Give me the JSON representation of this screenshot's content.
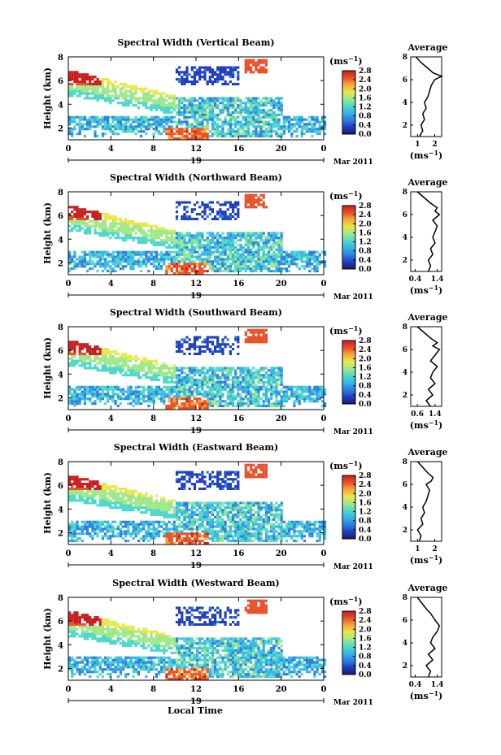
{
  "figure": {
    "xlabel": "Local Time",
    "date_label": "Mar 2011",
    "day_label": "19",
    "ylabel": "Height (km)",
    "unit_label": "(ms",
    "unit_sup": "−1",
    "avg_title": "Average",
    "avg_xunit": "(ms",
    "x_ticks": [
      "0",
      "4",
      "8",
      "12",
      "16",
      "20",
      "0"
    ],
    "y_ticks": [
      "2",
      "4",
      "6",
      "8"
    ],
    "colorbar_ticks": [
      "0.0",
      "0.4",
      "0.8",
      "1.2",
      "1.6",
      "2.0",
      "2.4",
      "2.8"
    ]
  },
  "colors": {
    "colormap": [
      "#1a1a6e",
      "#1f3fbf",
      "#2f7fe0",
      "#36b4e8",
      "#4fd8c8",
      "#9fe88a",
      "#e8e84a",
      "#f5a83c",
      "#e8502a",
      "#c81e1e"
    ]
  },
  "chart_data": [
    {
      "type": "heatmap",
      "title": "Spectral Width (Vertical Beam)",
      "x_range": [
        0,
        24
      ],
      "y_range": [
        1,
        8
      ],
      "c_range": [
        0.0,
        2.8
      ],
      "avg_title": "Average",
      "avg_xticks": [
        "1",
        "2"
      ],
      "avg_xlim": [
        0.6,
        2.4
      ],
      "avg_profile": {
        "height": [
          1.0,
          1.5,
          2.0,
          2.5,
          3.0,
          3.5,
          4.0,
          4.5,
          5.0,
          5.5,
          6.0,
          6.3,
          6.6,
          7.0,
          7.5,
          8.0
        ],
        "value": [
          1.1,
          1.3,
          1.2,
          1.4,
          1.3,
          1.5,
          1.4,
          1.6,
          1.7,
          1.8,
          2.0,
          2.4,
          1.9,
          1.6,
          1.2,
          0.9
        ]
      }
    },
    {
      "type": "heatmap",
      "title": "Spectral Width (Northward Beam)",
      "x_range": [
        0,
        24
      ],
      "y_range": [
        1,
        8
      ],
      "c_range": [
        0.0,
        2.8
      ],
      "avg_title": "Average",
      "avg_xticks": [
        "0.4",
        "1.4"
      ],
      "avg_xlim": [
        0.2,
        1.6
      ],
      "avg_profile": {
        "height": [
          1.0,
          1.5,
          2.0,
          2.5,
          3.0,
          3.5,
          4.0,
          4.5,
          5.0,
          5.5,
          6.0,
          6.3,
          6.6,
          7.0,
          7.5,
          8.0
        ],
        "value": [
          1.0,
          1.1,
          1.0,
          1.2,
          1.1,
          1.3,
          1.2,
          1.3,
          1.4,
          1.2,
          1.5,
          1.3,
          1.4,
          1.1,
          0.8,
          0.5
        ]
      }
    },
    {
      "type": "heatmap",
      "title": "Spectral Width (Southward Beam)",
      "x_range": [
        0,
        24
      ],
      "y_range": [
        1,
        8
      ],
      "c_range": [
        0.0,
        2.8
      ],
      "avg_title": "Average",
      "avg_xticks": [
        "0.6",
        "1.4"
      ],
      "avg_xlim": [
        0.3,
        1.7
      ],
      "avg_profile": {
        "height": [
          1.0,
          1.5,
          2.0,
          2.5,
          3.0,
          3.5,
          4.0,
          4.5,
          5.0,
          5.5,
          6.0,
          6.3,
          6.6,
          7.0,
          7.5,
          8.0
        ],
        "value": [
          1.2,
          1.0,
          1.3,
          1.1,
          1.4,
          1.2,
          1.3,
          1.5,
          1.2,
          1.4,
          1.6,
          1.3,
          1.5,
          1.2,
          0.9,
          0.6
        ]
      }
    },
    {
      "type": "heatmap",
      "title": "Spectral Width (Eastward Beam)",
      "x_range": [
        0,
        24
      ],
      "y_range": [
        1,
        8
      ],
      "c_range": [
        0.0,
        2.8
      ],
      "avg_title": "Average",
      "avg_xticks": [
        "1",
        "2"
      ],
      "avg_xlim": [
        0.6,
        2.4
      ],
      "avg_profile": {
        "height": [
          1.0,
          1.5,
          2.0,
          2.5,
          3.0,
          3.5,
          4.0,
          4.5,
          5.0,
          5.5,
          6.0,
          6.3,
          6.6,
          7.0,
          7.5,
          8.0
        ],
        "value": [
          1.1,
          1.2,
          1.0,
          1.3,
          1.2,
          1.4,
          1.3,
          1.5,
          1.6,
          1.7,
          1.5,
          1.8,
          1.9,
          1.6,
          1.3,
          1.0
        ]
      }
    },
    {
      "type": "heatmap",
      "title": "Spectral Width (Westward Beam)",
      "x_range": [
        0,
        24
      ],
      "y_range": [
        1,
        8
      ],
      "c_range": [
        0.0,
        2.8
      ],
      "avg_title": "Average",
      "avg_xticks": [
        "0.4",
        "1.4"
      ],
      "avg_xlim": [
        0.2,
        1.6
      ],
      "avg_profile": {
        "height": [
          1.0,
          1.5,
          2.0,
          2.5,
          3.0,
          3.5,
          4.0,
          4.5,
          5.0,
          5.5,
          6.0,
          6.3,
          6.6,
          7.0,
          7.5,
          8.0
        ],
        "value": [
          1.0,
          1.1,
          0.9,
          1.2,
          1.0,
          1.3,
          1.1,
          1.2,
          1.4,
          1.5,
          1.3,
          1.2,
          1.1,
          0.9,
          0.7,
          0.5
        ]
      }
    }
  ]
}
